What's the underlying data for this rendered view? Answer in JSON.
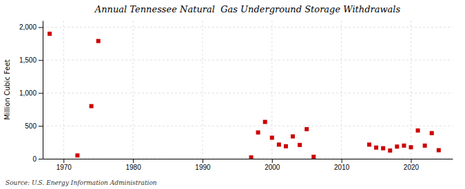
{
  "chart_data": {
    "type": "scatter",
    "title": "Annual Tennessee Natural  Gas Underground Storage Withdrawals",
    "ylabel": "Million Cubic Feet",
    "annotations": [
      "Source: U.S. Energy Information Administration"
    ],
    "x": [
      1968,
      1972,
      1974,
      1975,
      1997,
      1998,
      1999,
      2000,
      2001,
      2002,
      2003,
      2004,
      2005,
      2006,
      2014,
      2015,
      2016,
      2017,
      2018,
      2019,
      2020,
      2021,
      2022,
      2023,
      2024
    ],
    "values": [
      1900,
      50,
      800,
      1790,
      20,
      400,
      560,
      320,
      215,
      190,
      340,
      210,
      450,
      30,
      215,
      170,
      160,
      125,
      185,
      200,
      175,
      430,
      200,
      390,
      130
    ],
    "color": "#cc0000",
    "marker": "square",
    "xlim": [
      1967,
      2026
    ],
    "ylim": [
      0,
      2100
    ],
    "xticks": [
      1970,
      1980,
      1990,
      2000,
      2010,
      2020
    ],
    "yticks": [
      0,
      500,
      {
        "value": 1000,
        "label": "1,000"
      },
      {
        "value": 1500,
        "label": "1,500"
      },
      {
        "value": 2000,
        "label": "2,000"
      }
    ],
    "grid": true
  }
}
